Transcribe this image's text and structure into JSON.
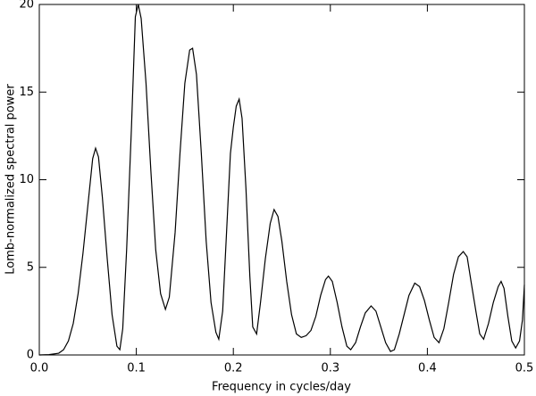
{
  "chart_data": {
    "type": "line",
    "x_label": "Frequency in cycles/day",
    "y_label": "Lomb-normalized spectral power",
    "xlim": [
      0,
      0.5
    ],
    "ylim": [
      0,
      20
    ],
    "xticks": [
      {
        "value": 0,
        "label": "0.0"
      },
      0.1,
      0.2,
      0.3,
      0.4,
      0.5
    ],
    "yticks": [
      0,
      5,
      10,
      15,
      20
    ],
    "color": "#000000",
    "x": [
      0,
      0.01,
      0.02,
      0.025,
      0.03,
      0.035,
      0.04,
      0.045,
      0.05,
      0.055,
      0.058,
      0.061,
      0.065,
      0.07,
      0.075,
      0.08,
      0.083,
      0.086,
      0.09,
      0.095,
      0.099,
      0.102,
      0.105,
      0.11,
      0.115,
      0.12,
      0.125,
      0.13,
      0.134,
      0.14,
      0.145,
      0.15,
      0.155,
      0.158,
      0.162,
      0.167,
      0.172,
      0.177,
      0.182,
      0.185,
      0.189,
      0.193,
      0.197,
      0.2,
      0.203,
      0.206,
      0.209,
      0.213,
      0.217,
      0.22,
      0.224,
      0.228,
      0.233,
      0.238,
      0.242,
      0.246,
      0.25,
      0.255,
      0.26,
      0.265,
      0.27,
      0.275,
      0.28,
      0.285,
      0.29,
      0.295,
      0.298,
      0.302,
      0.307,
      0.312,
      0.317,
      0.321,
      0.326,
      0.331,
      0.336,
      0.342,
      0.347,
      0.352,
      0.357,
      0.362,
      0.366,
      0.371,
      0.376,
      0.381,
      0.387,
      0.392,
      0.397,
      0.402,
      0.407,
      0.412,
      0.417,
      0.422,
      0.427,
      0.432,
      0.437,
      0.441,
      0.445,
      0.45,
      0.454,
      0.458,
      0.463,
      0.468,
      0.473,
      0.476,
      0.479,
      0.483,
      0.487,
      0.491,
      0.495,
      0.498,
      0.5
    ],
    "values": [
      0,
      0.02,
      0.1,
      0.3,
      0.8,
      1.8,
      3.5,
      5.8,
      8.5,
      11.2,
      11.8,
      11.3,
      9.0,
      5.5,
      2.3,
      0.5,
      0.3,
      1.5,
      6.0,
      13.0,
      19.3,
      20.0,
      19.2,
      15.5,
      10.5,
      6.0,
      3.5,
      2.6,
      3.3,
      7.0,
      11.5,
      15.5,
      17.4,
      17.5,
      16.0,
      11.5,
      6.5,
      3.0,
      1.3,
      0.9,
      2.5,
      7.0,
      11.5,
      13.0,
      14.2,
      14.6,
      13.5,
      9.5,
      4.5,
      1.6,
      1.2,
      3.0,
      5.5,
      7.5,
      8.3,
      7.9,
      6.5,
      4.2,
      2.3,
      1.2,
      1.0,
      1.1,
      1.4,
      2.2,
      3.4,
      4.3,
      4.5,
      4.2,
      3.0,
      1.6,
      0.5,
      0.3,
      0.7,
      1.6,
      2.4,
      2.8,
      2.5,
      1.6,
      0.7,
      0.2,
      0.3,
      1.2,
      2.3,
      3.4,
      4.1,
      3.9,
      3.1,
      2.0,
      1.0,
      0.7,
      1.5,
      3.0,
      4.6,
      5.6,
      5.9,
      5.6,
      4.2,
      2.5,
      1.2,
      0.9,
      1.8,
      3.0,
      3.9,
      4.2,
      3.8,
      2.2,
      0.8,
      0.4,
      0.8,
      2.0,
      4.0
    ]
  }
}
